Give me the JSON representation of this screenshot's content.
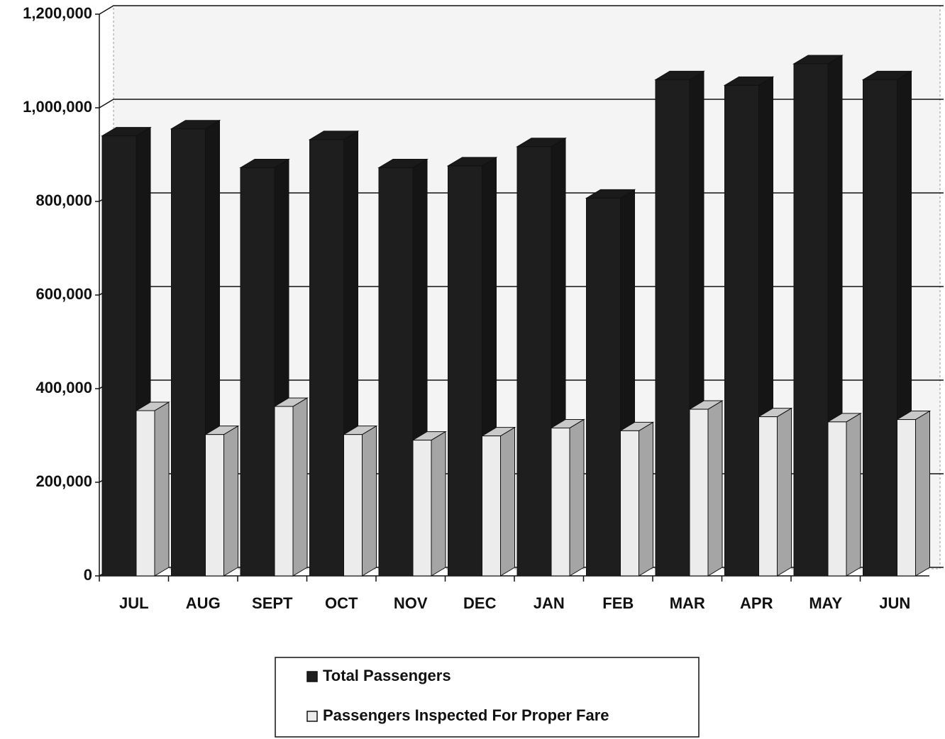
{
  "chart_data": {
    "type": "bar",
    "categories": [
      "JUL",
      "AUG",
      "SEPT",
      "OCT",
      "NOV",
      "DEC",
      "JAN",
      "FEB",
      "MAR",
      "APR",
      "MAY",
      "JUN"
    ],
    "series": [
      {
        "name": "Total Passengers",
        "color": "#1e1e1e",
        "values": [
          940000,
          955000,
          872000,
          932000,
          872000,
          876000,
          917000,
          807000,
          1060000,
          1048000,
          1094000,
          1060000
        ]
      },
      {
        "name": "Passengers Inspected For Proper Fare",
        "color": "#ececec",
        "values": [
          353000,
          302000,
          362000,
          302000,
          290000,
          299000,
          316000,
          310000,
          356000,
          340000,
          329000,
          334000
        ]
      }
    ],
    "ylim": [
      0,
      1200000
    ],
    "yticks": [
      0,
      {
        "value": 200000,
        "label": "200,000"
      },
      {
        "value": 400000,
        "label": "400,000"
      },
      {
        "value": 600000,
        "label": "600,000"
      },
      {
        "value": 800000,
        "label": "800,000"
      },
      {
        "value": 1000000,
        "label": "1,000,000"
      },
      {
        "value": 1200000,
        "label": "1,200,000"
      }
    ],
    "grid": true,
    "legend": "bottom"
  }
}
